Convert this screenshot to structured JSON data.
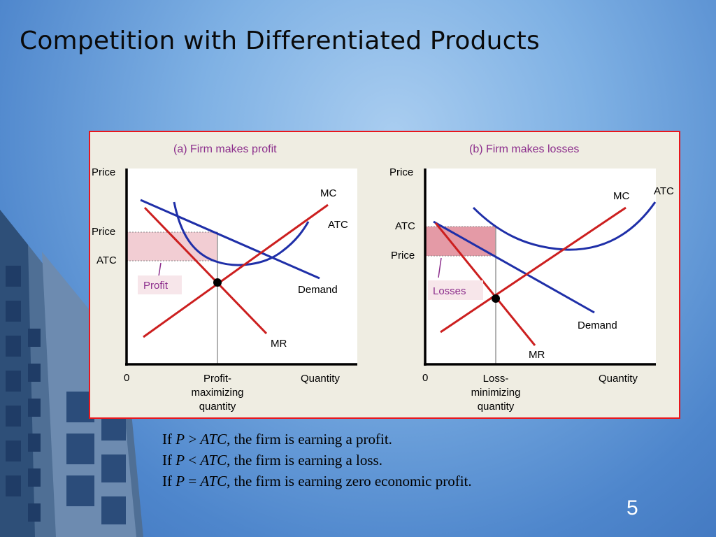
{
  "slide": {
    "title": "Competition with Differentiated Products",
    "number": "5"
  },
  "colors": {
    "curve_red": "#cc1f1f",
    "curve_blue": "#1f2fa8",
    "border_red": "#e8161c",
    "profit_fill": "#f2cdd3",
    "loss_fill": "#e49aa6",
    "label_purple": "#8c2e8c"
  },
  "panel_a": {
    "title": "(a) Firm makes profit",
    "y_axis_label": "Price",
    "price_label": "Price",
    "atc_label": "ATC",
    "origin_label": "0",
    "x_axis_label": "Quantity",
    "quantity_label": [
      "Profit-",
      "maximizing",
      "quantity"
    ],
    "mc_label": "MC",
    "atc_curve_label": "ATC",
    "demand_label": "Demand",
    "mr_label": "MR",
    "area_label": "Profit"
  },
  "panel_b": {
    "title": "(b) Firm makes losses",
    "y_axis_label": "Price",
    "atc_label": "ATC",
    "price_label": "Price",
    "origin_label": "0",
    "x_axis_label": "Quantity",
    "quantity_label": [
      "Loss-",
      "minimizing",
      "quantity"
    ],
    "mc_label": "MC",
    "atc_curve_label": "ATC",
    "demand_label": "Demand",
    "mr_label": "MR",
    "area_label": "Losses"
  },
  "statements": [
    {
      "prefix": "If ",
      "p": "P",
      "op": " > ",
      "atc": "ATC",
      "rest": ", the firm is earning a profit."
    },
    {
      "prefix": "If ",
      "p": "P",
      "op": " < ",
      "atc": "ATC",
      "rest": ", the firm is earning a loss."
    },
    {
      "prefix": "If ",
      "p": "P",
      "op": " = ",
      "atc": "ATC",
      "rest": ", the firm is earning zero economic profit."
    }
  ]
}
